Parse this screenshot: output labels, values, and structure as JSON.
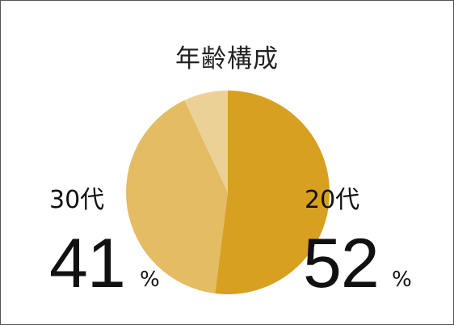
{
  "chart_data": {
    "type": "pie",
    "title": "年齢構成",
    "slices": [
      {
        "label": "20代",
        "value": 52,
        "value_label": "52",
        "unit": "%",
        "color": "#D8A021"
      },
      {
        "label": "30代",
        "value": 41,
        "value_label": "41",
        "unit": "%",
        "color": "#E3BC63"
      },
      {
        "label": "",
        "value": 7,
        "color": "#ECD196"
      }
    ],
    "start_angle": "12 o'clock",
    "direction": "clockwise"
  }
}
